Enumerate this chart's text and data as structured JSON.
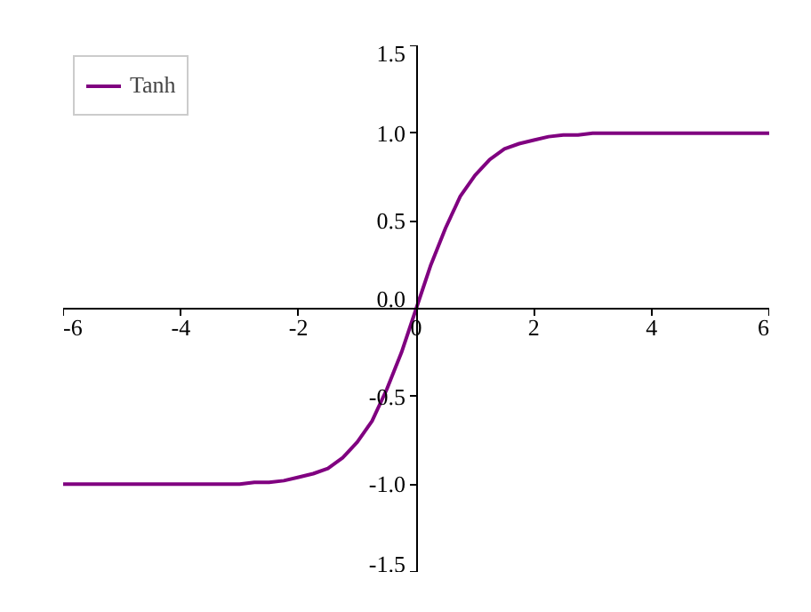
{
  "chart_data": {
    "type": "line",
    "x": [
      -6,
      -5,
      -4,
      -3,
      -2.75,
      -2.5,
      -2.25,
      -2,
      -1.75,
      -1.5,
      -1.25,
      -1,
      -0.75,
      -0.5,
      -0.25,
      0,
      0.25,
      0.5,
      0.75,
      1,
      1.25,
      1.5,
      1.75,
      2,
      2.25,
      2.5,
      2.75,
      3,
      4,
      5,
      6
    ],
    "series": [
      {
        "name": "Tanh",
        "color": "#800080",
        "values": [
          -1.0,
          -1.0,
          -1.0,
          -1.0,
          -0.99,
          -0.99,
          -0.98,
          -0.96,
          -0.94,
          -0.91,
          -0.85,
          -0.76,
          -0.64,
          -0.46,
          -0.25,
          0.0,
          0.25,
          0.46,
          0.64,
          0.76,
          0.85,
          0.91,
          0.94,
          0.96,
          0.98,
          0.99,
          0.99,
          1.0,
          1.0,
          1.0,
          1.0
        ]
      }
    ],
    "xlim": [
      -6,
      6
    ],
    "ylim": [
      -1.5,
      1.5
    ],
    "xticks": [
      -6,
      -4,
      -2,
      0,
      2,
      4,
      6
    ],
    "yticks": [
      {
        "value": -1.5,
        "label": "-1.5"
      },
      {
        "value": -1,
        "label": "-1.0"
      },
      {
        "value": -0.5,
        "label": "-0.5"
      },
      {
        "value": 0,
        "label": "0.0"
      },
      {
        "value": 0.5,
        "label": "0.5"
      },
      {
        "value": 1,
        "label": "1.0"
      },
      {
        "value": 1.5,
        "label": "1.5"
      }
    ],
    "legend": "top left"
  }
}
